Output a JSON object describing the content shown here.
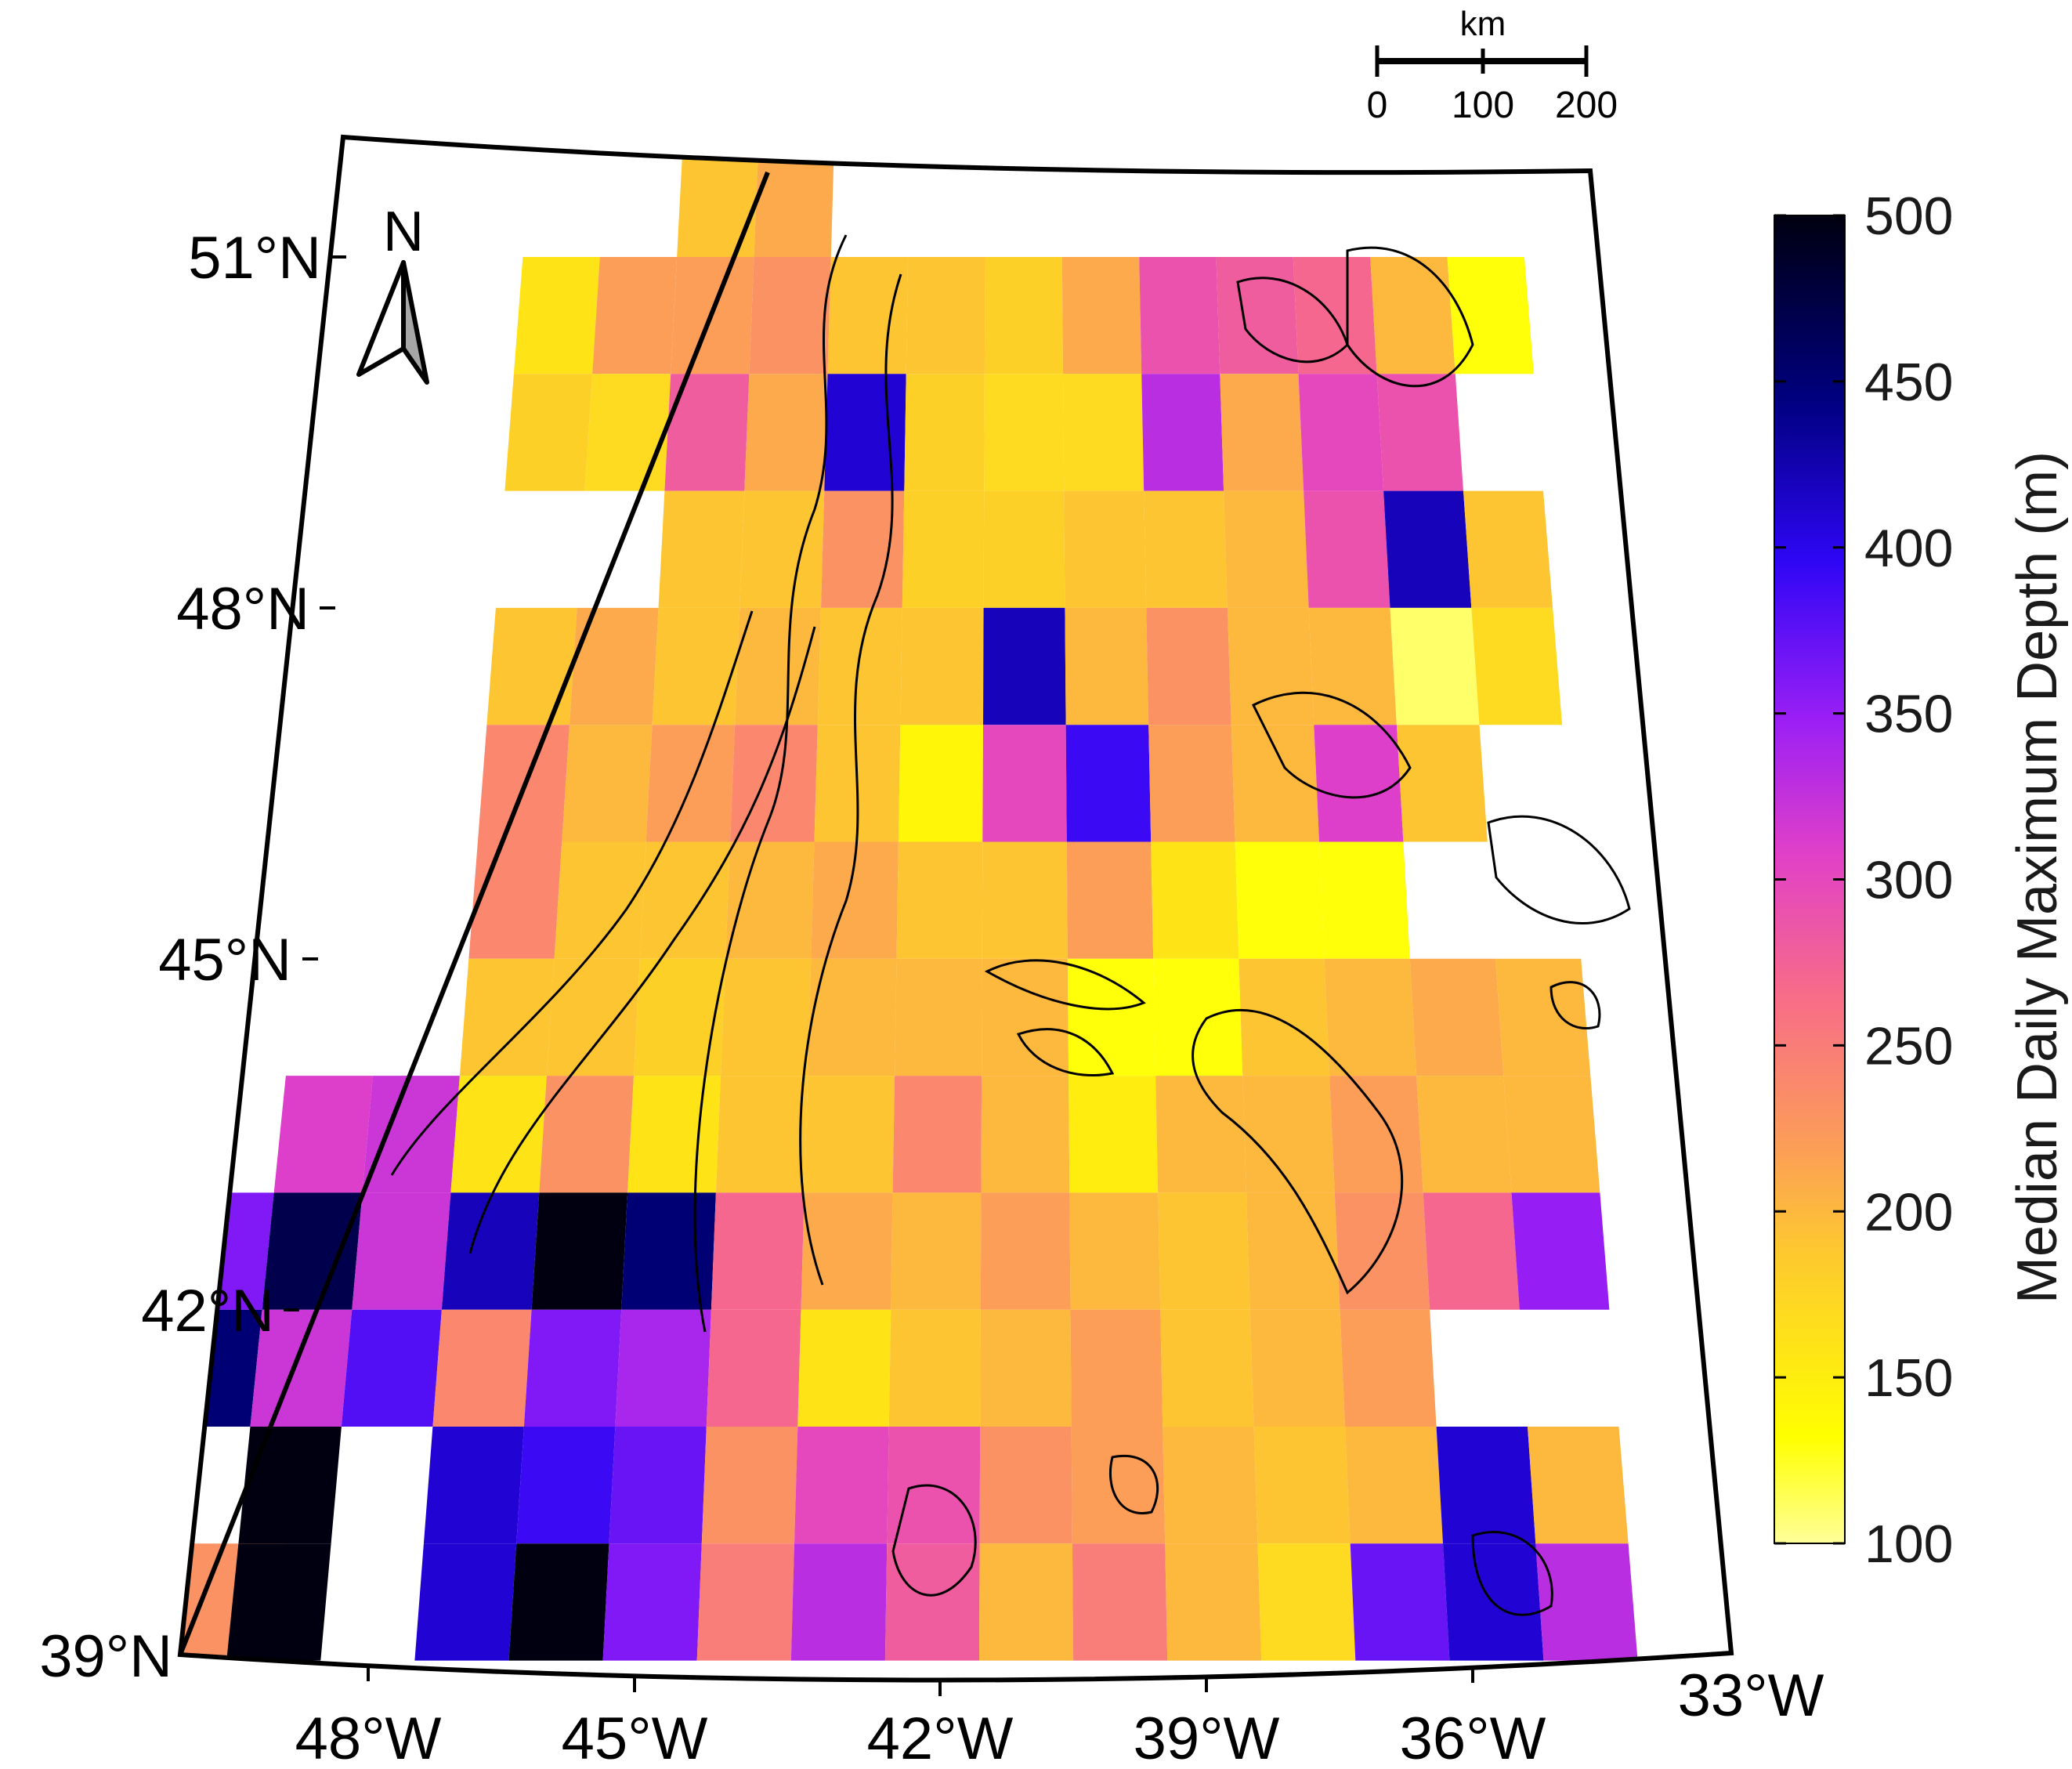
{
  "map": {
    "lat_labels": [
      "51°N",
      "48°N",
      "45°N",
      "42°N",
      "39°N"
    ],
    "lon_labels": [
      "48°W",
      "45°W",
      "42°W",
      "39°W",
      "36°W",
      "33°W"
    ],
    "north_arrow": {
      "label": "N",
      "icon": "north-arrow-icon"
    },
    "scale_bar": {
      "unit": "km",
      "ticks": [
        "0",
        "100",
        "200"
      ]
    }
  },
  "colorbar": {
    "title": "Median Daily Maximum Depth (m)",
    "min": 100,
    "max": 500,
    "ticks": [
      "500",
      "450",
      "400",
      "350",
      "300",
      "250",
      "200",
      "150",
      "100"
    ],
    "colors": [
      "#ffff99",
      "#ffff00",
      "#fdc82f",
      "#fc9d58",
      "#f7698c",
      "#e040c8",
      "#9b1ff5",
      "#2e06f5",
      "#000080",
      "#000010"
    ]
  },
  "chart_data": {
    "type": "heatmap",
    "xlabel": "",
    "ylabel": "",
    "value_label": "Median Daily Maximum Depth (m)",
    "lon_range": [
      -49.5,
      -32.5
    ],
    "lat_range": [
      39,
      52
    ],
    "cell_deg": 1,
    "cells": [
      {
        "lon": -44.5,
        "lat": 51.5,
        "v": 190
      },
      {
        "lon": -43.5,
        "lat": 51.5,
        "v": 210
      },
      {
        "lon": -46.5,
        "lat": 50.5,
        "v": 160
      },
      {
        "lon": -45.5,
        "lat": 50.5,
        "v": 220
      },
      {
        "lon": -44.5,
        "lat": 50.5,
        "v": 220
      },
      {
        "lon": -43.5,
        "lat": 50.5,
        "v": 230
      },
      {
        "lon": -42.5,
        "lat": 50.5,
        "v": 190
      },
      {
        "lon": -41.5,
        "lat": 50.5,
        "v": 190
      },
      {
        "lon": -40.5,
        "lat": 50.5,
        "v": 180
      },
      {
        "lon": -39.5,
        "lat": 50.5,
        "v": 210
      },
      {
        "lon": -38.5,
        "lat": 50.5,
        "v": 290
      },
      {
        "lon": -37.5,
        "lat": 50.5,
        "v": 280
      },
      {
        "lon": -36.5,
        "lat": 50.5,
        "v": 270
      },
      {
        "lon": -35.5,
        "lat": 50.5,
        "v": 200
      },
      {
        "lon": -34.5,
        "lat": 50.5,
        "v": 130
      },
      {
        "lon": -46.5,
        "lat": 49.5,
        "v": 180
      },
      {
        "lon": -45.5,
        "lat": 49.5,
        "v": 170
      },
      {
        "lon": -44.5,
        "lat": 49.5,
        "v": 280
      },
      {
        "lon": -43.5,
        "lat": 49.5,
        "v": 210
      },
      {
        "lon": -42.5,
        "lat": 49.5,
        "v": 410
      },
      {
        "lon": -41.5,
        "lat": 49.5,
        "v": 180
      },
      {
        "lon": -40.5,
        "lat": 49.5,
        "v": 170
      },
      {
        "lon": -39.5,
        "lat": 49.5,
        "v": 170
      },
      {
        "lon": -38.5,
        "lat": 49.5,
        "v": 330
      },
      {
        "lon": -37.5,
        "lat": 49.5,
        "v": 210
      },
      {
        "lon": -36.5,
        "lat": 49.5,
        "v": 300
      },
      {
        "lon": -35.5,
        "lat": 49.5,
        "v": 290
      },
      {
        "lon": -44.5,
        "lat": 48.5,
        "v": 190
      },
      {
        "lon": -43.5,
        "lat": 48.5,
        "v": 190
      },
      {
        "lon": -42.5,
        "lat": 48.5,
        "v": 230
      },
      {
        "lon": -41.5,
        "lat": 48.5,
        "v": 180
      },
      {
        "lon": -40.5,
        "lat": 48.5,
        "v": 180
      },
      {
        "lon": -39.5,
        "lat": 48.5,
        "v": 190
      },
      {
        "lon": -38.5,
        "lat": 48.5,
        "v": 190
      },
      {
        "lon": -37.5,
        "lat": 48.5,
        "v": 200
      },
      {
        "lon": -36.5,
        "lat": 48.5,
        "v": 290
      },
      {
        "lon": -35.5,
        "lat": 48.5,
        "v": 420
      },
      {
        "lon": -34.5,
        "lat": 48.5,
        "v": 190
      },
      {
        "lon": -46.5,
        "lat": 47.5,
        "v": 190
      },
      {
        "lon": -45.5,
        "lat": 47.5,
        "v": 210
      },
      {
        "lon": -44.5,
        "lat": 47.5,
        "v": 190
      },
      {
        "lon": -43.5,
        "lat": 47.5,
        "v": 200
      },
      {
        "lon": -42.5,
        "lat": 47.5,
        "v": 190
      },
      {
        "lon": -41.5,
        "lat": 47.5,
        "v": 190
      },
      {
        "lon": -40.5,
        "lat": 47.5,
        "v": 420
      },
      {
        "lon": -39.5,
        "lat": 47.5,
        "v": 200
      },
      {
        "lon": -38.5,
        "lat": 47.5,
        "v": 230
      },
      {
        "lon": -37.5,
        "lat": 47.5,
        "v": 200
      },
      {
        "lon": -36.5,
        "lat": 47.5,
        "v": 200
      },
      {
        "lon": -35.5,
        "lat": 47.5,
        "v": 110
      },
      {
        "lon": -34.5,
        "lat": 47.5,
        "v": 170
      },
      {
        "lon": -46.5,
        "lat": 46.5,
        "v": 240
      },
      {
        "lon": -45.5,
        "lat": 46.5,
        "v": 200
      },
      {
        "lon": -44.5,
        "lat": 46.5,
        "v": 220
      },
      {
        "lon": -43.5,
        "lat": 46.5,
        "v": 240
      },
      {
        "lon": -42.5,
        "lat": 46.5,
        "v": 190
      },
      {
        "lon": -41.5,
        "lat": 46.5,
        "v": 140
      },
      {
        "lon": -40.5,
        "lat": 46.5,
        "v": 300
      },
      {
        "lon": -39.5,
        "lat": 46.5,
        "v": 390
      },
      {
        "lon": -38.5,
        "lat": 46.5,
        "v": 220
      },
      {
        "lon": -37.5,
        "lat": 46.5,
        "v": 200
      },
      {
        "lon": -36.5,
        "lat": 46.5,
        "v": 310
      },
      {
        "lon": -35.5,
        "lat": 46.5,
        "v": 190
      },
      {
        "lon": -46.5,
        "lat": 45.5,
        "v": 240
      },
      {
        "lon": -45.5,
        "lat": 45.5,
        "v": 190
      },
      {
        "lon": -44.5,
        "lat": 45.5,
        "v": 190
      },
      {
        "lon": -43.5,
        "lat": 45.5,
        "v": 200
      },
      {
        "lon": -42.5,
        "lat": 45.5,
        "v": 210
      },
      {
        "lon": -41.5,
        "lat": 45.5,
        "v": 190
      },
      {
        "lon": -40.5,
        "lat": 45.5,
        "v": 190
      },
      {
        "lon": -39.5,
        "lat": 45.5,
        "v": 220
      },
      {
        "lon": -38.5,
        "lat": 45.5,
        "v": 160
      },
      {
        "lon": -37.5,
        "lat": 45.5,
        "v": 130
      },
      {
        "lon": -36.5,
        "lat": 45.5,
        "v": 130
      },
      {
        "lon": -46.5,
        "lat": 44.5,
        "v": 190
      },
      {
        "lon": -45.5,
        "lat": 44.5,
        "v": 190
      },
      {
        "lon": -44.5,
        "lat": 44.5,
        "v": 180
      },
      {
        "lon": -43.5,
        "lat": 44.5,
        "v": 190
      },
      {
        "lon": -42.5,
        "lat": 44.5,
        "v": 200
      },
      {
        "lon": -41.5,
        "lat": 44.5,
        "v": 200
      },
      {
        "lon": -40.5,
        "lat": 44.5,
        "v": 200
      },
      {
        "lon": -39.5,
        "lat": 44.5,
        "v": 130
      },
      {
        "lon": -38.5,
        "lat": 44.5,
        "v": 130
      },
      {
        "lon": -37.5,
        "lat": 44.5,
        "v": 190
      },
      {
        "lon": -36.5,
        "lat": 44.5,
        "v": 200
      },
      {
        "lon": -35.5,
        "lat": 44.5,
        "v": 210
      },
      {
        "lon": -34.5,
        "lat": 44.5,
        "v": 200
      },
      {
        "lon": -48.5,
        "lat": 43.5,
        "v": 310
      },
      {
        "lon": -47.5,
        "lat": 43.5,
        "v": 320
      },
      {
        "lon": -46.5,
        "lat": 43.5,
        "v": 160
      },
      {
        "lon": -45.5,
        "lat": 43.5,
        "v": 230
      },
      {
        "lon": -44.5,
        "lat": 43.5,
        "v": 160
      },
      {
        "lon": -43.5,
        "lat": 43.5,
        "v": 190
      },
      {
        "lon": -42.5,
        "lat": 43.5,
        "v": 190
      },
      {
        "lon": -41.5,
        "lat": 43.5,
        "v": 240
      },
      {
        "lon": -40.5,
        "lat": 43.5,
        "v": 200
      },
      {
        "lon": -39.5,
        "lat": 43.5,
        "v": 150
      },
      {
        "lon": -38.5,
        "lat": 43.5,
        "v": 200
      },
      {
        "lon": -37.5,
        "lat": 43.5,
        "v": 200
      },
      {
        "lon": -36.5,
        "lat": 43.5,
        "v": 220
      },
      {
        "lon": -35.5,
        "lat": 43.5,
        "v": 200
      },
      {
        "lon": -34.5,
        "lat": 43.5,
        "v": 200
      },
      {
        "lon": -49.5,
        "lat": 42.5,
        "v": 360
      },
      {
        "lon": -48.5,
        "lat": 42.5,
        "v": 470
      },
      {
        "lon": -47.5,
        "lat": 42.5,
        "v": 320
      },
      {
        "lon": -46.5,
        "lat": 42.5,
        "v": 420
      },
      {
        "lon": -45.5,
        "lat": 42.5,
        "v": 500
      },
      {
        "lon": -44.5,
        "lat": 42.5,
        "v": 450
      },
      {
        "lon": -43.5,
        "lat": 42.5,
        "v": 270
      },
      {
        "lon": -42.5,
        "lat": 42.5,
        "v": 210
      },
      {
        "lon": -41.5,
        "lat": 42.5,
        "v": 200
      },
      {
        "lon": -40.5,
        "lat": 42.5,
        "v": 220
      },
      {
        "lon": -39.5,
        "lat": 42.5,
        "v": 200
      },
      {
        "lon": -38.5,
        "lat": 42.5,
        "v": 190
      },
      {
        "lon": -37.5,
        "lat": 42.5,
        "v": 200
      },
      {
        "lon": -36.5,
        "lat": 42.5,
        "v": 230
      },
      {
        "lon": -35.5,
        "lat": 42.5,
        "v": 270
      },
      {
        "lon": -34.5,
        "lat": 42.5,
        "v": 350
      },
      {
        "lon": -49.5,
        "lat": 41.5,
        "v": 450
      },
      {
        "lon": -48.5,
        "lat": 41.5,
        "v": 320
      },
      {
        "lon": -47.5,
        "lat": 41.5,
        "v": 380
      },
      {
        "lon": -46.5,
        "lat": 41.5,
        "v": 240
      },
      {
        "lon": -45.5,
        "lat": 41.5,
        "v": 360
      },
      {
        "lon": -44.5,
        "lat": 41.5,
        "v": 340
      },
      {
        "lon": -43.5,
        "lat": 41.5,
        "v": 270
      },
      {
        "lon": -42.5,
        "lat": 41.5,
        "v": 160
      },
      {
        "lon": -41.5,
        "lat": 41.5,
        "v": 190
      },
      {
        "lon": -40.5,
        "lat": 41.5,
        "v": 200
      },
      {
        "lon": -39.5,
        "lat": 41.5,
        "v": 220
      },
      {
        "lon": -38.5,
        "lat": 41.5,
        "v": 190
      },
      {
        "lon": -37.5,
        "lat": 41.5,
        "v": 200
      },
      {
        "lon": -36.5,
        "lat": 41.5,
        "v": 220
      },
      {
        "lon": -50.0,
        "lat": 40.5,
        "v": 110
      },
      {
        "lon": -48.5,
        "lat": 40.5,
        "v": 500
      },
      {
        "lon": -46.5,
        "lat": 40.5,
        "v": 410
      },
      {
        "lon": -45.5,
        "lat": 40.5,
        "v": 390
      },
      {
        "lon": -44.5,
        "lat": 40.5,
        "v": 370
      },
      {
        "lon": -43.5,
        "lat": 40.5,
        "v": 230
      },
      {
        "lon": -42.5,
        "lat": 40.5,
        "v": 300
      },
      {
        "lon": -41.5,
        "lat": 40.5,
        "v": 290
      },
      {
        "lon": -40.5,
        "lat": 40.5,
        "v": 230
      },
      {
        "lon": -39.5,
        "lat": 40.5,
        "v": 220
      },
      {
        "lon": -38.5,
        "lat": 40.5,
        "v": 200
      },
      {
        "lon": -37.5,
        "lat": 40.5,
        "v": 190
      },
      {
        "lon": -36.5,
        "lat": 40.5,
        "v": 200
      },
      {
        "lon": -35.5,
        "lat": 40.5,
        "v": 410
      },
      {
        "lon": -34.5,
        "lat": 40.5,
        "v": 200
      },
      {
        "lon": -49.0,
        "lat": 39.5,
        "v": 230
      },
      {
        "lon": -48.5,
        "lat": 39.5,
        "v": 500
      },
      {
        "lon": -46.5,
        "lat": 39.5,
        "v": 410
      },
      {
        "lon": -45.5,
        "lat": 39.5,
        "v": 500
      },
      {
        "lon": -44.5,
        "lat": 39.5,
        "v": 360
      },
      {
        "lon": -43.5,
        "lat": 39.5,
        "v": 250
      },
      {
        "lon": -42.5,
        "lat": 39.5,
        "v": 330
      },
      {
        "lon": -41.5,
        "lat": 39.5,
        "v": 280
      },
      {
        "lon": -40.5,
        "lat": 39.5,
        "v": 200
      },
      {
        "lon": -39.5,
        "lat": 39.5,
        "v": 250
      },
      {
        "lon": -38.5,
        "lat": 39.5,
        "v": 200
      },
      {
        "lon": -37.5,
        "lat": 39.5,
        "v": 170
      },
      {
        "lon": -36.5,
        "lat": 39.5,
        "v": 370
      },
      {
        "lon": -35.5,
        "lat": 39.5,
        "v": 410
      },
      {
        "lon": -34.5,
        "lat": 39.5,
        "v": 330
      }
    ]
  }
}
